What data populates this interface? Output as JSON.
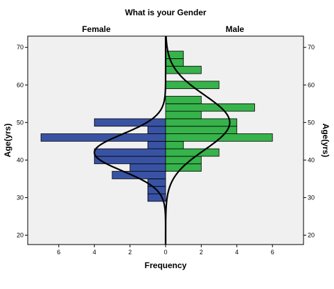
{
  "chart_data": {
    "type": "bar",
    "title": "What is your Gender",
    "xlabel": "Frequency",
    "ylabel_left": "Age(yrs)",
    "ylabel_right": "Age(yrs)",
    "ylim": [
      17.5,
      73
    ],
    "xlim": [
      0,
      7.5
    ],
    "y_ticks": [
      20,
      30,
      40,
      50,
      60,
      70
    ],
    "x_ticks": [
      0,
      2,
      4,
      6
    ],
    "bin_width": 2,
    "colors": {
      "female_bar": "#3953a4",
      "male_bar": "#36b34a",
      "plot_bg": "#f0f0f0",
      "curve": "#000000",
      "outline": "#000000"
    },
    "series": [
      {
        "name": "Female",
        "side": "left",
        "bins": [
          {
            "age": 30,
            "count": 1
          },
          {
            "age": 32,
            "count": 1
          },
          {
            "age": 34,
            "count": 1
          },
          {
            "age": 36,
            "count": 3
          },
          {
            "age": 38,
            "count": 2
          },
          {
            "age": 40,
            "count": 4
          },
          {
            "age": 42,
            "count": 4
          },
          {
            "age": 44,
            "count": 1
          },
          {
            "age": 46,
            "count": 7
          },
          {
            "age": 48,
            "count": 1
          },
          {
            "age": 50,
            "count": 4
          }
        ],
        "normal_curve": {
          "mean": 42,
          "sd": 4.9,
          "peak": 4.0
        }
      },
      {
        "name": "Male",
        "side": "right",
        "bins": [
          {
            "age": 38,
            "count": 2
          },
          {
            "age": 40,
            "count": 2
          },
          {
            "age": 42,
            "count": 3
          },
          {
            "age": 44,
            "count": 1
          },
          {
            "age": 46,
            "count": 6
          },
          {
            "age": 48,
            "count": 4
          },
          {
            "age": 50,
            "count": 4
          },
          {
            "age": 52,
            "count": 2
          },
          {
            "age": 54,
            "count": 5
          },
          {
            "age": 56,
            "count": 2
          },
          {
            "age": 60,
            "count": 3
          },
          {
            "age": 64,
            "count": 2
          },
          {
            "age": 66,
            "count": 1
          },
          {
            "age": 68,
            "count": 1
          }
        ],
        "normal_curve": {
          "mean": 50,
          "sd": 7.3,
          "peak": 3.6
        }
      }
    ]
  }
}
